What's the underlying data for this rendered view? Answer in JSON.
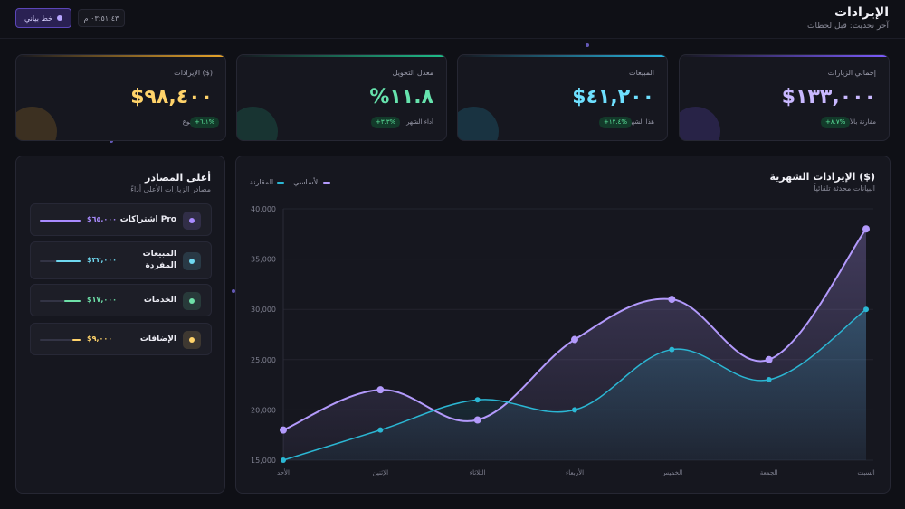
{
  "header": {
    "title": "الإيرادات",
    "subtitle": "آخر تحديث: قبل لحظات",
    "mode_label": "خط بياني",
    "time": "٠٣:٥١:٤٣ م"
  },
  "kpis": [
    {
      "label": "إجمالي الزيارات",
      "value": "$١٣٣,٠٠٠",
      "badge": "+٨.٧%",
      "note": "مقارنة بالأمس",
      "color": "#c9b8ff",
      "accent": "#7c5cff"
    },
    {
      "label": "المبيعات",
      "value": "$٤١,٢٠٠",
      "badge": "+١٢.٤%",
      "note": "هذا الشهر",
      "color": "#6ee0ff",
      "accent": "#28b6e0"
    },
    {
      "label": "معدل التحويل",
      "value": "%١١.٨",
      "badge": "+٣.٣%",
      "note": "أداء الشهر",
      "color": "#66e3ad",
      "accent": "#1fbf8a"
    },
    {
      "label": "الإيرادات ($)",
      "value": "$٩٨,٤٠٠",
      "badge": "+٦.١%",
      "note": "هذا الأسبوع",
      "color": "#ffd36a",
      "accent": "#e8a52a"
    }
  ],
  "sources": {
    "title": "أعلى المصادر",
    "subtitle": "مصادر الزيارات الأعلى أداءً",
    "items": [
      {
        "name": "اشتراكات Pro",
        "value": "$٦٥,٠٠٠",
        "share": 1.0,
        "color": "#a98bff"
      },
      {
        "name": "المبيعات المفردة",
        "value": "$٣٢,٠٠٠",
        "share": 0.6,
        "color": "#6fd8f0"
      },
      {
        "name": "الخدمات",
        "value": "$١٧,٠٠٠",
        "share": 0.4,
        "color": "#6ee0a8"
      },
      {
        "name": "الإضافات",
        "value": "$٩,٠٠٠",
        "share": 0.2,
        "color": "#ffd36a"
      }
    ]
  },
  "chart_data": {
    "type": "area",
    "title": "الإيرادات الشهرية ($)",
    "subtitle": "البيانات محدثة تلقائياً",
    "categories": [
      "الأحد",
      "الإثنين",
      "الثلاثاء",
      "الأربعاء",
      "الخميس",
      "الجمعة",
      "السبت"
    ],
    "series": [
      {
        "name": "الأساسي",
        "values": [
          18000,
          22000,
          19000,
          27000,
          31000,
          25000,
          38000
        ],
        "color": "#b39afc"
      },
      {
        "name": "المقارنة",
        "values": [
          15000,
          18000,
          21000,
          20000,
          26000,
          23000,
          30000
        ],
        "color": "#2bb7d4"
      }
    ],
    "ylim": [
      15000,
      40000
    ],
    "yticks": [
      "15,000",
      "20,000",
      "25,000",
      "30,000",
      "35,000",
      "40,000"
    ],
    "grid": true,
    "legend": "top-left"
  }
}
